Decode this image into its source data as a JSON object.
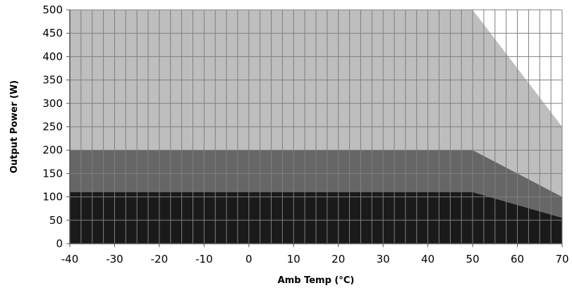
{
  "chart_data": {
    "type": "area",
    "title": "",
    "xlabel": "Amb Temp (°C)",
    "ylabel": "Output Power (W)",
    "xlim": [
      -40,
      70
    ],
    "ylim": [
      0,
      500
    ],
    "x_ticks": [
      -40,
      -30,
      -20,
      -10,
      0,
      10,
      20,
      30,
      40,
      50,
      60,
      70
    ],
    "y_ticks": [
      0,
      50,
      100,
      150,
      200,
      250,
      300,
      350,
      400,
      450,
      500
    ],
    "grid": true,
    "series": [
      {
        "color": "#bebebe",
        "points": [
          [
            -40,
            500
          ],
          [
            50,
            500
          ],
          [
            70,
            250
          ]
        ]
      },
      {
        "color": "#666666",
        "points": [
          [
            -40,
            200
          ],
          [
            50,
            200
          ],
          [
            70,
            100
          ]
        ]
      },
      {
        "color": "#1a1a1a",
        "points": [
          [
            -40,
            110
          ],
          [
            50,
            110
          ],
          [
            70,
            55
          ]
        ]
      }
    ]
  }
}
